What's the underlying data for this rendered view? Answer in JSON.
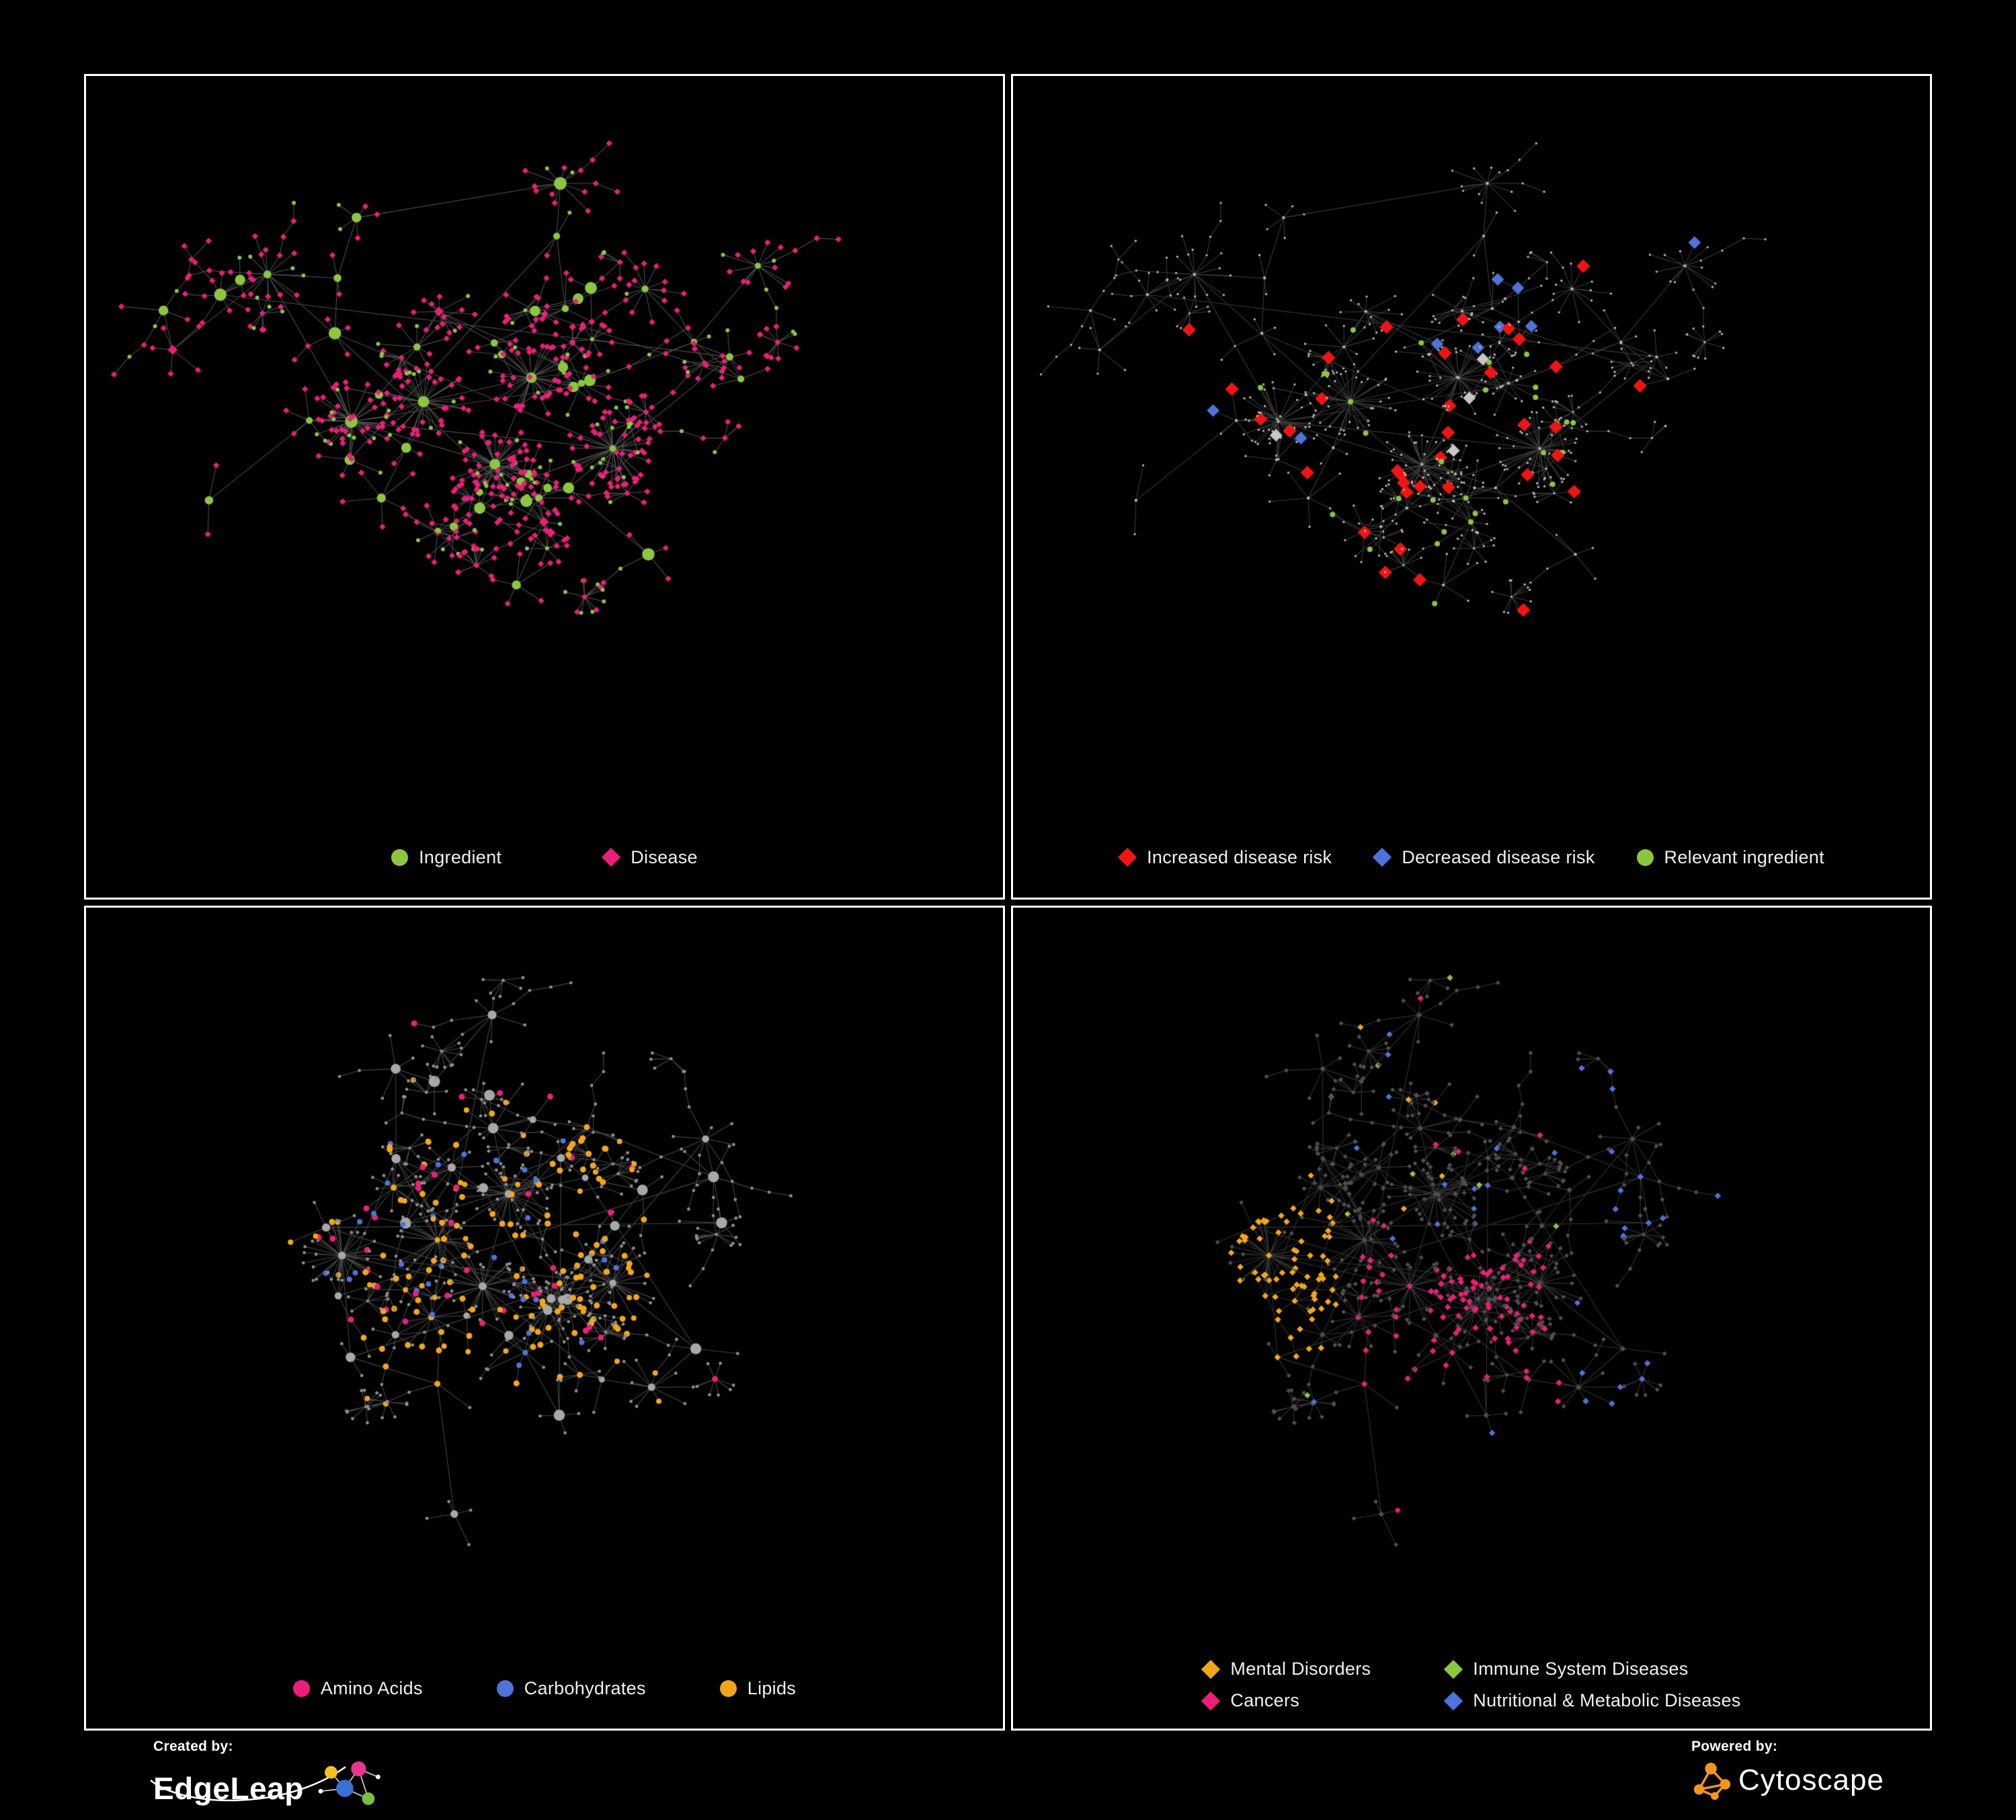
{
  "panels": [
    {
      "id": "ingredient-disease",
      "legend": [
        {
          "label": "Ingredient",
          "shape": "circle",
          "color": "#8CC63F"
        },
        {
          "label": "Disease",
          "shape": "diamond",
          "color": "#EC1E79"
        }
      ]
    },
    {
      "id": "disease-risk",
      "legend": [
        {
          "label": "Increased disease risk",
          "shape": "diamond",
          "color": "#F01414"
        },
        {
          "label": "Decreased disease risk",
          "shape": "diamond",
          "color": "#4E73DB"
        },
        {
          "label": "Relevant ingredient",
          "shape": "circle",
          "color": "#8CC63F"
        }
      ]
    },
    {
      "id": "nutrients",
      "legend": [
        {
          "label": "Amino Acids",
          "shape": "circle",
          "color": "#EC1E79"
        },
        {
          "label": "Carbohydrates",
          "shape": "circle",
          "color": "#4E73DB"
        },
        {
          "label": "Lipids",
          "shape": "circle",
          "color": "#F2A71B"
        }
      ]
    },
    {
      "id": "disease-classes",
      "legend": [
        {
          "label": "Mental Disorders",
          "shape": "diamond",
          "color": "#F2A71B"
        },
        {
          "label": "Immune System Diseases",
          "shape": "diamond",
          "color": "#8CC63F"
        },
        {
          "label": "Cancers",
          "shape": "diamond",
          "color": "#EC1E79"
        },
        {
          "label": "Nutritional & Metabolic Diseases",
          "shape": "diamond",
          "color": "#4E73DB"
        }
      ]
    }
  ],
  "footer": {
    "created_by_label": "Created by:",
    "brand_left": "EdgeLeap",
    "powered_by_label": "Powered by:",
    "brand_right": "Cytoscape"
  },
  "colors": {
    "background": "#000000",
    "panel_border": "#FFFFFF",
    "legend_text": "#F0F0F0",
    "green": "#8CC63F",
    "pink": "#EC1E79",
    "red": "#F01414",
    "blue": "#4E73DB",
    "orange": "#F2A71B",
    "gray": "#A8A8A8",
    "gray2": "#8E8E8E",
    "lightgray": "#C6C6C6",
    "dim": "#B5B5B5",
    "darkgray": "#4E4E4E",
    "edge": "#8A8A8A",
    "edge_faint": "#7F7F7F",
    "edge_dark": "#646464",
    "edgeleap_yellow": "#F7C21E",
    "edgeleap_pink": "#E8358C",
    "edgeleap_blue": "#3B6FD4",
    "edgeleap_green": "#79BE43",
    "cytoscape_orange": "#F7941E"
  }
}
